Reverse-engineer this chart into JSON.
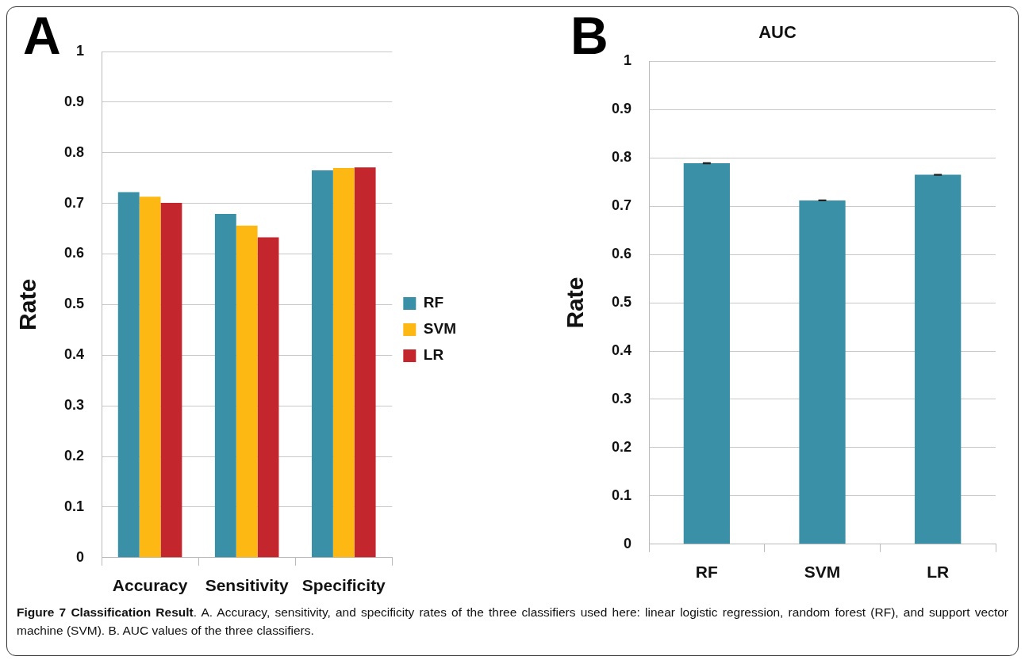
{
  "chart_data": [
    {
      "type": "bar",
      "ylabel": "Rate",
      "categories": [
        "Accuracy",
        "Sensitivity",
        "Specificity"
      ],
      "series": [
        {
          "name": "RF",
          "color": "#3a90a6",
          "values": [
            0.722,
            0.679,
            0.765
          ]
        },
        {
          "name": "SVM",
          "color": "#fdb813",
          "values": [
            0.713,
            0.656,
            0.77
          ]
        },
        {
          "name": "LR",
          "color": "#c4262e",
          "values": [
            0.701,
            0.633,
            0.771
          ]
        }
      ],
      "ylim": [
        0,
        1
      ],
      "yticks": [
        0,
        0.1,
        0.2,
        0.3,
        0.4,
        0.5,
        0.6,
        0.7,
        0.8,
        0.9,
        1
      ],
      "grid": "y",
      "legend": "right",
      "annotations": [
        "A",
        "Figure 7 Classification Result",
        ". A. Accuracy, sensitivity, and specificity rates of the three classifiers used here: linear logistic regression, random forest (RF), and support vector machine (SVM). B. AUC values of the three classifiers."
      ]
    },
    {
      "type": "bar",
      "title": "AUC",
      "ylabel": "Rate",
      "categories": [
        "RF",
        "SVM",
        "LR"
      ],
      "values": [
        0.789,
        0.712,
        0.765
      ],
      "errors": [
        0.001,
        0.001,
        0.001
      ],
      "color": "#3a90a6",
      "ylim": [
        0,
        1
      ],
      "yticks": [
        0,
        0.1,
        0.2,
        0.3,
        0.4,
        0.5,
        0.6,
        0.7,
        0.8,
        0.9,
        1
      ],
      "grid": "y",
      "annotations": [
        "B"
      ]
    }
  ]
}
